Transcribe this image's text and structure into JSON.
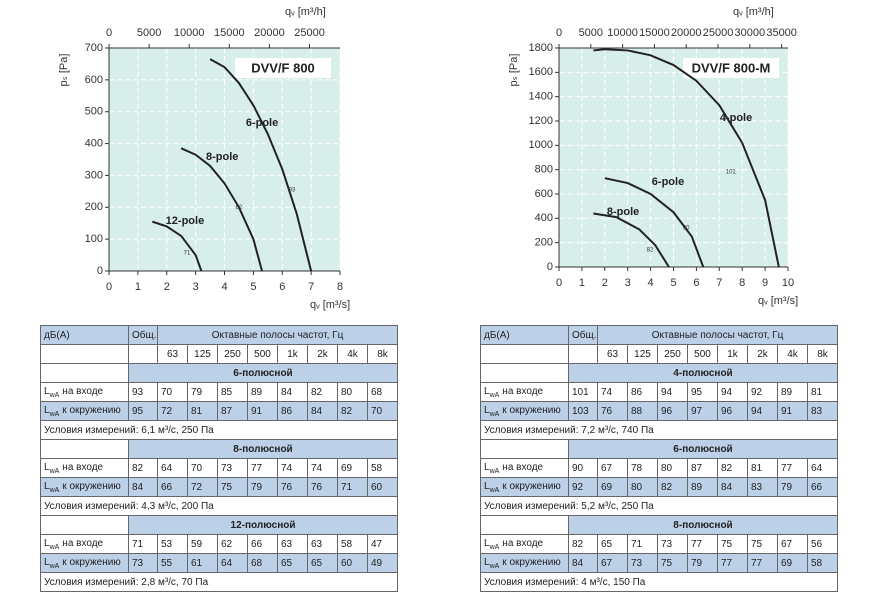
{
  "chart_data": [
    {
      "type": "line",
      "title": "DVV/F 800",
      "xlabel": "qᵥ [m³/s]",
      "x2label": "qᵥ [m³/h]",
      "ylabel": "pₛ [Pa]",
      "xlim": [
        0,
        8
      ],
      "xticks": [
        0,
        1,
        2,
        3,
        4,
        5,
        6,
        7,
        8
      ],
      "x2lim": [
        0,
        28800
      ],
      "x2ticks": [
        0,
        5000,
        10000,
        15000,
        20000,
        25000
      ],
      "ylim": [
        0,
        700
      ],
      "yticks": [
        0,
        100,
        200,
        300,
        400,
        500,
        600,
        700
      ],
      "grid": true,
      "background": "#d8eeeb",
      "series": [
        {
          "name": "6-pole",
          "annotation": "93",
          "color": "#222222",
          "x": [
            3.5,
            4.0,
            4.5,
            5.0,
            5.5,
            6.0,
            6.5,
            7.0
          ],
          "values": [
            665,
            640,
            590,
            520,
            430,
            320,
            180,
            0
          ]
        },
        {
          "name": "8-pole",
          "annotation": "82",
          "color": "#222222",
          "x": [
            2.5,
            3.0,
            3.5,
            4.0,
            4.5,
            5.0,
            5.3
          ],
          "values": [
            385,
            365,
            330,
            275,
            200,
            100,
            0
          ]
        },
        {
          "name": "12-pole",
          "annotation": "71",
          "color": "#222222",
          "x": [
            1.5,
            2.0,
            2.5,
            3.0,
            3.2
          ],
          "values": [
            155,
            140,
            110,
            50,
            0
          ]
        }
      ]
    },
    {
      "type": "line",
      "title": "DVV/F 800-M",
      "xlabel": "qᵥ [m³/s]",
      "x2label": "qᵥ [m³/h]",
      "ylabel": "pₛ [Pa]",
      "xlim": [
        0,
        10
      ],
      "xticks": [
        0,
        1,
        2,
        3,
        4,
        5,
        6,
        7,
        8,
        9,
        10
      ],
      "x2lim": [
        0,
        36000
      ],
      "x2ticks": [
        0,
        5000,
        10000,
        15000,
        20000,
        25000,
        30000,
        35000
      ],
      "ylim": [
        0,
        1800
      ],
      "yticks": [
        0,
        200,
        400,
        600,
        800,
        1000,
        1200,
        1400,
        1600,
        1800
      ],
      "grid": true,
      "background": "#d8eeeb",
      "series": [
        {
          "name": "4-pole",
          "annotation": "101",
          "color": "#222222",
          "x": [
            1.5,
            2,
            3,
            4,
            5,
            6,
            7,
            8,
            9,
            9.6
          ],
          "values": [
            1780,
            1790,
            1780,
            1740,
            1660,
            1530,
            1330,
            1020,
            550,
            0
          ]
        },
        {
          "name": "6-pole",
          "annotation": "90",
          "color": "#222222",
          "x": [
            2,
            3,
            4,
            5,
            5.8,
            6.3
          ],
          "values": [
            730,
            690,
            600,
            450,
            250,
            0
          ]
        },
        {
          "name": "8-pole",
          "annotation": "82",
          "color": "#222222",
          "x": [
            1.5,
            2.5,
            3.5,
            4.2,
            4.8
          ],
          "values": [
            440,
            410,
            310,
            180,
            0
          ]
        }
      ]
    }
  ],
  "tables": [
    {
      "header": {
        "label": "дБ(А)",
        "total": "Общ.",
        "bands_title": "Октавные полосы частот, Гц",
        "bands": [
          "63",
          "125",
          "250",
          "500",
          "1k",
          "2k",
          "4k",
          "8k"
        ]
      },
      "sections": [
        {
          "title": "6-полюсной",
          "rows": [
            {
              "symbol": "L",
              "sub": "wA",
              "text": "на входе",
              "total": 93,
              "values": [
                70,
                79,
                85,
                89,
                84,
                82,
                80,
                68
              ]
            },
            {
              "symbol": "L",
              "sub": "wA",
              "text": "к окружению",
              "total": 95,
              "values": [
                72,
                81,
                87,
                91,
                86,
                84,
                82,
                70
              ]
            }
          ],
          "conditions": "Условия измерений: 6,1 м³/с, 250 Па"
        },
        {
          "title": "8-полюсной",
          "rows": [
            {
              "symbol": "L",
              "sub": "wA",
              "text": "на входе",
              "total": 82,
              "values": [
                64,
                70,
                73,
                77,
                74,
                74,
                69,
                58
              ]
            },
            {
              "symbol": "L",
              "sub": "wA",
              "text": "к окружению",
              "total": 84,
              "values": [
                66,
                72,
                75,
                79,
                76,
                76,
                71,
                60
              ]
            }
          ],
          "conditions": "Условия измерений: 4,3 м³/с, 200 Па"
        },
        {
          "title": "12-полюсной",
          "rows": [
            {
              "symbol": "L",
              "sub": "wA",
              "text": "на входе",
              "total": 71,
              "values": [
                53,
                59,
                62,
                66,
                63,
                63,
                58,
                47
              ]
            },
            {
              "symbol": "L",
              "sub": "wA",
              "text": "к окружению",
              "total": 73,
              "values": [
                55,
                61,
                64,
                68,
                65,
                65,
                60,
                49
              ]
            }
          ],
          "conditions": "Условия измерений: 2,8 м³/с, 70 Па"
        }
      ]
    },
    {
      "header": {
        "label": "дБ(А)",
        "total": "Общ.",
        "bands_title": "Октавные полосы частот, Гц",
        "bands": [
          "63",
          "125",
          "250",
          "500",
          "1k",
          "2k",
          "4k",
          "8k"
        ]
      },
      "sections": [
        {
          "title": "4-полюсной",
          "rows": [
            {
              "symbol": "L",
              "sub": "wA",
              "text": "на входе",
              "total": 101,
              "values": [
                74,
                86,
                94,
                95,
                94,
                92,
                89,
                81
              ]
            },
            {
              "symbol": "L",
              "sub": "wA",
              "text": "к окружению",
              "total": 103,
              "values": [
                76,
                88,
                96,
                97,
                96,
                94,
                91,
                83
              ]
            }
          ],
          "conditions": "Условия измерений: 7,2 м³/с, 740 Па"
        },
        {
          "title": "6-полюсной",
          "rows": [
            {
              "symbol": "L",
              "sub": "wA",
              "text": "на входе",
              "total": 90,
              "values": [
                67,
                78,
                80,
                87,
                82,
                81,
                77,
                64
              ]
            },
            {
              "symbol": "L",
              "sub": "wA",
              "text": "к окружению",
              "total": 92,
              "values": [
                69,
                80,
                82,
                89,
                84,
                83,
                79,
                66
              ]
            }
          ],
          "conditions": "Условия измерений: 5,2 м³/с, 250 Па"
        },
        {
          "title": "8-полюсной",
          "rows": [
            {
              "symbol": "L",
              "sub": "wA",
              "text": "на входе",
              "total": 82,
              "values": [
                65,
                71,
                73,
                77,
                75,
                75,
                67,
                56
              ]
            },
            {
              "symbol": "L",
              "sub": "wA",
              "text": "к окружению",
              "total": 84,
              "values": [
                67,
                73,
                75,
                79,
                77,
                77,
                69,
                58
              ]
            }
          ],
          "conditions": "Условия измерений: 4 м³/с, 150 Па"
        }
      ]
    }
  ]
}
